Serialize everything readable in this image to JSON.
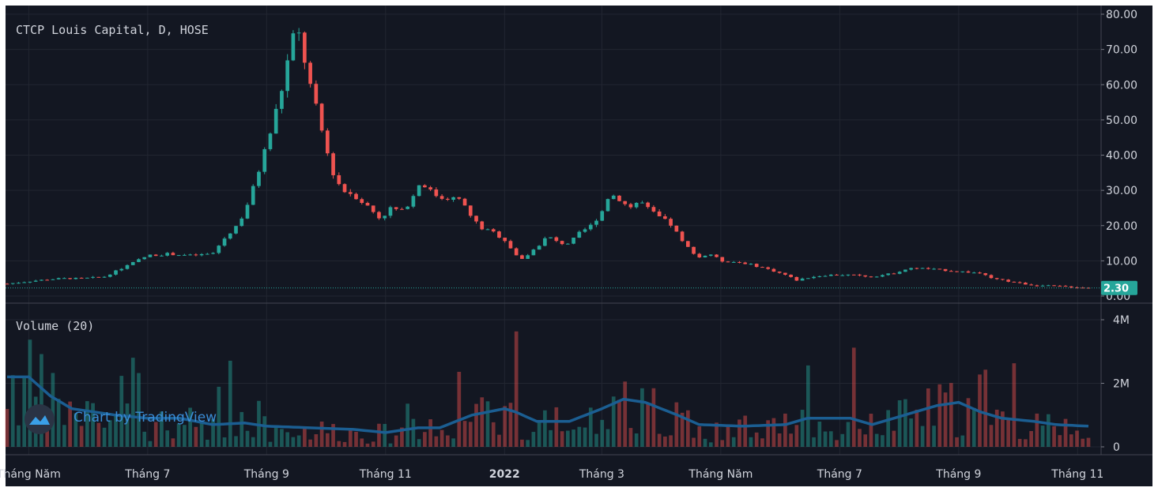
{
  "chart_data": {
    "type": "candlestick",
    "symbol_label": "CTCP Louis Capital, D, HOSE",
    "volume_label": "Volume (20)",
    "watermark": "Chart by TradingView",
    "last_price": 2.3,
    "last_price_label": "2.30",
    "price_axis": {
      "min": 0,
      "max": 80,
      "ticks": [
        0,
        10,
        20,
        30,
        40,
        50,
        60,
        70,
        80
      ],
      "tick_labels": [
        "0.00",
        "10.00",
        "20.00",
        "30.00",
        "40.00",
        "50.00",
        "60.00",
        "70.00",
        "80.00"
      ]
    },
    "volume_axis": {
      "min": 0,
      "max": 4000000,
      "ticks": [
        0,
        2000000,
        4000000
      ],
      "tick_labels": [
        "0",
        "2M",
        "4M"
      ]
    },
    "x_axis": {
      "labels": [
        {
          "t": 0.02,
          "text": "Tháng Năm",
          "bold": false
        },
        {
          "t": 0.13,
          "text": "Tháng 7",
          "bold": false
        },
        {
          "t": 0.24,
          "text": "Tháng 9",
          "bold": false
        },
        {
          "t": 0.35,
          "text": "Tháng 11",
          "bold": false
        },
        {
          "t": 0.46,
          "text": "2022",
          "bold": true
        },
        {
          "t": 0.55,
          "text": "Tháng 3",
          "bold": false
        },
        {
          "t": 0.66,
          "text": "Tháng Năm",
          "bold": false
        },
        {
          "t": 0.77,
          "text": "Tháng 7",
          "bold": false
        },
        {
          "t": 0.88,
          "text": "Tháng 9",
          "bold": false
        },
        {
          "t": 0.99,
          "text": "Tháng 11",
          "bold": false
        }
      ]
    },
    "price_anchors": [
      [
        0.0,
        3.5
      ],
      [
        0.03,
        4.5
      ],
      [
        0.05,
        5.0
      ],
      [
        0.07,
        5.0
      ],
      [
        0.09,
        5.5
      ],
      [
        0.11,
        8.5
      ],
      [
        0.13,
        11.5
      ],
      [
        0.15,
        12.0
      ],
      [
        0.17,
        11.5
      ],
      [
        0.19,
        12.0
      ],
      [
        0.2,
        16.0
      ],
      [
        0.215,
        21.0
      ],
      [
        0.225,
        28.0
      ],
      [
        0.235,
        38.0
      ],
      [
        0.245,
        48.0
      ],
      [
        0.255,
        60.0
      ],
      [
        0.263,
        72.0
      ],
      [
        0.268,
        76.0
      ],
      [
        0.273,
        70.0
      ],
      [
        0.28,
        60.0
      ],
      [
        0.29,
        48.0
      ],
      [
        0.3,
        36.0
      ],
      [
        0.31,
        30.0
      ],
      [
        0.32,
        29.0
      ],
      [
        0.335,
        25.0
      ],
      [
        0.345,
        22.0
      ],
      [
        0.355,
        25.0
      ],
      [
        0.365,
        24.0
      ],
      [
        0.375,
        28.0
      ],
      [
        0.383,
        33.0
      ],
      [
        0.39,
        30.0
      ],
      [
        0.4,
        28.0
      ],
      [
        0.41,
        28.0
      ],
      [
        0.42,
        27.0
      ],
      [
        0.43,
        22.0
      ],
      [
        0.44,
        19.0
      ],
      [
        0.45,
        18.0
      ],
      [
        0.46,
        16.0
      ],
      [
        0.47,
        12.0
      ],
      [
        0.475,
        10.0
      ],
      [
        0.49,
        14.0
      ],
      [
        0.5,
        17.0
      ],
      [
        0.51,
        15.0
      ],
      [
        0.52,
        15.0
      ],
      [
        0.53,
        18.0
      ],
      [
        0.54,
        20.0
      ],
      [
        0.55,
        24.0
      ],
      [
        0.557,
        29.0
      ],
      [
        0.565,
        28.0
      ],
      [
        0.575,
        25.0
      ],
      [
        0.585,
        27.0
      ],
      [
        0.595,
        24.0
      ],
      [
        0.605,
        22.0
      ],
      [
        0.615,
        20.0
      ],
      [
        0.625,
        15.0
      ],
      [
        0.64,
        11.0
      ],
      [
        0.65,
        12.0
      ],
      [
        0.66,
        10.0
      ],
      [
        0.68,
        9.5
      ],
      [
        0.7,
        8.0
      ],
      [
        0.72,
        6.0
      ],
      [
        0.73,
        4.5
      ],
      [
        0.745,
        5.5
      ],
      [
        0.76,
        6.0
      ],
      [
        0.78,
        6.0
      ],
      [
        0.8,
        5.5
      ],
      [
        0.82,
        6.5
      ],
      [
        0.83,
        7.5
      ],
      [
        0.84,
        8.0
      ],
      [
        0.86,
        7.5
      ],
      [
        0.88,
        7.0
      ],
      [
        0.9,
        6.5
      ],
      [
        0.91,
        5.0
      ],
      [
        0.93,
        4.0
      ],
      [
        0.95,
        3.0
      ],
      [
        0.97,
        2.8
      ],
      [
        0.99,
        2.5
      ],
      [
        1.0,
        2.3
      ]
    ],
    "volume_ma_anchors": [
      [
        0.0,
        2.2
      ],
      [
        0.02,
        2.2
      ],
      [
        0.04,
        1.6
      ],
      [
        0.06,
        1.2
      ],
      [
        0.1,
        1.0
      ],
      [
        0.13,
        0.9
      ],
      [
        0.16,
        0.9
      ],
      [
        0.19,
        0.7
      ],
      [
        0.22,
        0.75
      ],
      [
        0.24,
        0.65
      ],
      [
        0.28,
        0.6
      ],
      [
        0.32,
        0.55
      ],
      [
        0.35,
        0.45
      ],
      [
        0.38,
        0.6
      ],
      [
        0.4,
        0.6
      ],
      [
        0.43,
        1.0
      ],
      [
        0.46,
        1.2
      ],
      [
        0.47,
        1.1
      ],
      [
        0.49,
        0.8
      ],
      [
        0.52,
        0.8
      ],
      [
        0.55,
        1.2
      ],
      [
        0.57,
        1.5
      ],
      [
        0.59,
        1.4
      ],
      [
        0.62,
        1.0
      ],
      [
        0.64,
        0.7
      ],
      [
        0.68,
        0.65
      ],
      [
        0.72,
        0.7
      ],
      [
        0.74,
        0.9
      ],
      [
        0.78,
        0.9
      ],
      [
        0.8,
        0.7
      ],
      [
        0.83,
        1.0
      ],
      [
        0.86,
        1.3
      ],
      [
        0.88,
        1.4
      ],
      [
        0.9,
        1.1
      ],
      [
        0.92,
        0.9
      ],
      [
        0.95,
        0.8
      ],
      [
        0.97,
        0.7
      ],
      [
        1.0,
        0.65
      ]
    ],
    "volume_units": "millions",
    "bar_count": 190
  }
}
